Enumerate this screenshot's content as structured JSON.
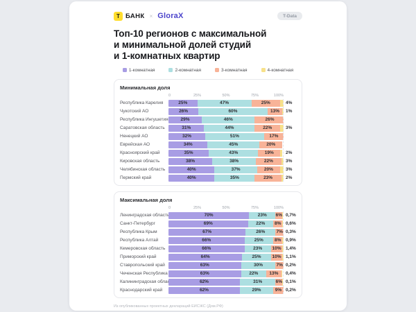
{
  "header": {
    "logo_letter": "Т",
    "tbank_label": "БАНК",
    "separator": "×",
    "glorax_label": "GloraX",
    "badge_label": "T-Data"
  },
  "title": {
    "line1": "Топ-10 регионов с максимальной",
    "line2": "и минимальной долей студий",
    "line3": "и 1-комнатных квартир"
  },
  "legend": [
    {
      "label": "1-комнатная",
      "color": "#a89de4"
    },
    {
      "label": "2-комнатная",
      "color": "#addfe1"
    },
    {
      "label": "3-комнатная",
      "color": "#f8b398"
    },
    {
      "label": "4-комнатная",
      "color": "#f7e18a"
    }
  ],
  "colors": {
    "page_bg": "#e9ebef",
    "card_bg": "#ffffff",
    "tbank_yellow": "#ffdd2d",
    "glorax_indigo": "#4b44cb"
  },
  "chart_data": [
    {
      "type": "bar",
      "orientation": "horizontal",
      "stacked": true,
      "title": "Минимальная доля",
      "unit": "%",
      "xlim": [
        0,
        100
      ],
      "x_ticks": [
        "0",
        "25%",
        "50%",
        "75%",
        "100%"
      ],
      "legend_position": "top",
      "categories": [
        "Республика Карелия",
        "Чукотский АО",
        "Республика Ингушетия",
        "Саратовская область",
        "Ненецкий АО",
        "Еврейская АО",
        "Красноярский край",
        "Кировская область",
        "Челябинская область",
        "Пермский край"
      ],
      "series": [
        {
          "name": "1-комнатная",
          "values": [
            25,
            26,
            29,
            31,
            32,
            34,
            35,
            38,
            40,
            40
          ]
        },
        {
          "name": "2-комнатная",
          "values": [
            47,
            60,
            46,
            44,
            51,
            45,
            43,
            38,
            37,
            35
          ]
        },
        {
          "name": "3-комнатная",
          "values": [
            25,
            13,
            26,
            22,
            17,
            20,
            19,
            22,
            20,
            23
          ]
        },
        {
          "name": "4-комнатная",
          "values": [
            4,
            1,
            0,
            3,
            0,
            0,
            2,
            3,
            3,
            2
          ]
        }
      ],
      "outside_labels": [
        "4%",
        "1%",
        "",
        "3%",
        "",
        "",
        "2%",
        "3%",
        "3%",
        "2%"
      ]
    },
    {
      "type": "bar",
      "orientation": "horizontal",
      "stacked": true,
      "title": "Максимальная доля",
      "unit": "%",
      "xlim": [
        0,
        100
      ],
      "x_ticks": [
        "0",
        "25%",
        "50%",
        "75%",
        "100%"
      ],
      "legend_position": "top",
      "categories": [
        "Ленинградская область",
        "Санкт-Петербург",
        "Республика Крым",
        "Республика Алтай",
        "Кемеровская область",
        "Приморский край",
        "Ставропольский край",
        "Чеченская Республика",
        "Калининградская область",
        "Краснодарский край"
      ],
      "series": [
        {
          "name": "1-комнатная",
          "values": [
            70,
            69,
            67,
            66,
            66,
            64,
            63,
            63,
            62,
            62
          ]
        },
        {
          "name": "2-комнатная",
          "values": [
            23,
            22,
            26,
            25,
            23,
            25,
            30,
            22,
            31,
            29
          ]
        },
        {
          "name": "3-комнатная",
          "values": [
            6,
            8,
            7,
            8,
            10,
            10,
            7,
            13,
            6,
            9
          ]
        },
        {
          "name": "4-комнатная",
          "values": [
            0.7,
            0.6,
            0.3,
            0.9,
            1.4,
            1.1,
            0.2,
            0.4,
            0.1,
            0.2
          ]
        }
      ],
      "outside_labels": [
        "0,7%",
        "0,6%",
        "0,3%",
        "0,9%",
        "1,4%",
        "1,1%",
        "0,2%",
        "0,4%",
        "0,1%",
        "0,2%"
      ]
    }
  ],
  "footer": {
    "source": "Из опубликованных проектных деклараций ЕИСЖС (Дом.РФ)"
  }
}
